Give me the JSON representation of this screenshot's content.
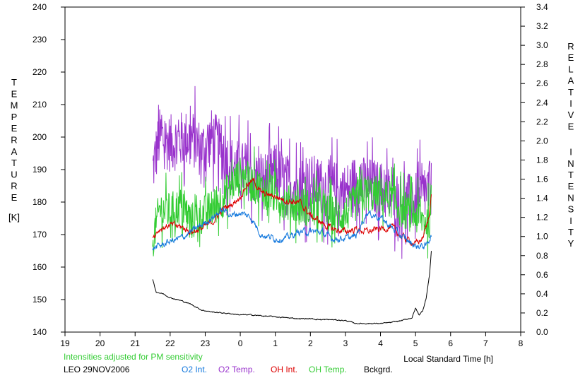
{
  "chart_data": {
    "type": "line",
    "title": "",
    "xlabel": "Local Standard Time [h]",
    "ylabel_left_letters": [
      "T",
      "E",
      "M",
      "P",
      "E",
      "R",
      "A",
      "T",
      "U",
      "R",
      "E"
    ],
    "ylabel_left_unit": "[K]",
    "ylabel_right_words": [
      [
        "R",
        "E",
        "L",
        "A",
        "T",
        "I",
        "V",
        "E"
      ],
      [
        "I",
        "N",
        "T",
        "E",
        "N",
        "S",
        "I",
        "T",
        "Y"
      ]
    ],
    "xlim": [
      19,
      32
    ],
    "x_tick_values": [
      19,
      20,
      21,
      22,
      23,
      24,
      25,
      26,
      27,
      28,
      29,
      30,
      31,
      32
    ],
    "x_tick_labels": [
      "19",
      "20",
      "21",
      "22",
      "23",
      "0",
      "1",
      "2",
      "3",
      "4",
      "5",
      "6",
      "7",
      "8"
    ],
    "ylim_left": [
      140,
      240
    ],
    "y_ticks_left": [
      "140",
      "150",
      "160",
      "170",
      "180",
      "190",
      "200",
      "210",
      "220",
      "230",
      "240"
    ],
    "ylim_right": [
      0.0,
      3.4
    ],
    "y_ticks_right": [
      "0.0",
      "0.2",
      "0.4",
      "0.6",
      "0.8",
      "1.0",
      "1.2",
      "1.4",
      "1.6",
      "1.8",
      "2.0",
      "2.2",
      "2.4",
      "2.6",
      "2.8",
      "3.0",
      "3.2",
      "3.4"
    ],
    "grid": false,
    "note": "Intensities adjusted for PM sensitivity",
    "station": "LEO 29NOV2006",
    "series": [
      {
        "name": "O2 Temp.",
        "axis": "left",
        "color": "#9933cc",
        "noise": 9,
        "x": [
          21.5,
          21.7,
          22.0,
          22.3,
          22.6,
          22.9,
          23.2,
          23.5,
          23.8,
          24.0,
          24.3,
          24.6,
          25.0,
          25.3,
          25.7,
          26.0,
          26.3,
          26.6,
          27.0,
          27.3,
          27.6,
          28.0,
          28.3,
          28.6,
          29.0,
          29.3,
          29.45
        ],
        "y": [
          190,
          200,
          198,
          199,
          200,
          196,
          200,
          195,
          191,
          190,
          189,
          186,
          189,
          186,
          184,
          186,
          185,
          184,
          183,
          186,
          185,
          184,
          182,
          180,
          180,
          183,
          184
        ]
      },
      {
        "name": "OH Temp.",
        "axis": "left",
        "color": "#33cc33",
        "noise": 6,
        "x": [
          21.5,
          21.7,
          22.0,
          22.3,
          22.6,
          22.9,
          23.2,
          23.5,
          23.8,
          24.0,
          24.3,
          24.6,
          25.0,
          25.3,
          25.7,
          26.0,
          26.3,
          26.6,
          27.0,
          27.3,
          27.6,
          28.0,
          28.3,
          28.6,
          29.0,
          29.3,
          29.45
        ],
        "y": [
          168,
          178,
          177,
          179,
          174,
          176,
          178,
          181,
          186,
          188,
          186,
          184,
          182,
          180,
          179,
          178,
          178,
          176,
          176,
          180,
          183,
          182,
          181,
          178,
          176,
          174,
          175
        ]
      },
      {
        "name": "OH Int.",
        "axis": "right",
        "color": "#dd0000",
        "noise": 0.025,
        "x": [
          21.5,
          21.7,
          22.0,
          22.3,
          22.6,
          22.9,
          23.2,
          23.5,
          23.8,
          24.0,
          24.2,
          24.4,
          24.6,
          25.0,
          25.3,
          25.7,
          26.0,
          26.3,
          26.6,
          27.0,
          27.3,
          27.6,
          28.0,
          28.3,
          28.6,
          29.0,
          29.2,
          29.35,
          29.45
        ],
        "y": [
          1.0,
          1.08,
          1.12,
          1.1,
          1.05,
          1.08,
          1.15,
          1.28,
          1.35,
          1.42,
          1.55,
          1.58,
          1.45,
          1.42,
          1.38,
          1.35,
          1.22,
          1.15,
          1.08,
          1.05,
          1.08,
          1.05,
          1.08,
          1.1,
          1.0,
          0.92,
          0.98,
          1.15,
          1.42
        ]
      },
      {
        "name": "O2 Int.",
        "axis": "right",
        "color": "#1177dd",
        "noise": 0.025,
        "x": [
          21.5,
          21.7,
          22.0,
          22.3,
          22.6,
          22.9,
          23.2,
          23.5,
          23.8,
          24.0,
          24.3,
          24.6,
          25.0,
          25.3,
          25.7,
          26.0,
          26.3,
          26.6,
          27.0,
          27.3,
          27.6,
          28.0,
          28.3,
          28.6,
          29.0,
          29.3,
          29.45
        ],
        "y": [
          0.88,
          0.9,
          0.95,
          0.98,
          1.05,
          1.12,
          1.2,
          1.28,
          1.22,
          1.25,
          1.2,
          1.02,
          0.98,
          0.98,
          1.05,
          1.05,
          1.05,
          0.98,
          0.98,
          1.0,
          1.25,
          1.2,
          1.1,
          1.0,
          0.9,
          0.9,
          1.02
        ]
      },
      {
        "name": "Bckgrd.",
        "axis": "right",
        "color": "#000000",
        "noise": 0.004,
        "x": [
          21.5,
          21.6,
          21.8,
          22.0,
          22.3,
          22.6,
          22.9,
          23.2,
          23.5,
          23.8,
          24.0,
          24.3,
          24.6,
          25.0,
          25.3,
          25.7,
          26.0,
          26.3,
          26.6,
          27.0,
          27.3,
          27.6,
          28.0,
          28.3,
          28.6,
          28.9,
          29.0,
          29.1,
          29.2,
          29.3,
          29.4,
          29.45
        ],
        "y": [
          0.55,
          0.42,
          0.4,
          0.36,
          0.33,
          0.29,
          0.23,
          0.21,
          0.2,
          0.19,
          0.18,
          0.18,
          0.17,
          0.16,
          0.15,
          0.14,
          0.14,
          0.13,
          0.13,
          0.12,
          0.09,
          0.09,
          0.09,
          0.1,
          0.12,
          0.15,
          0.25,
          0.18,
          0.22,
          0.35,
          0.6,
          0.85
        ]
      }
    ]
  }
}
